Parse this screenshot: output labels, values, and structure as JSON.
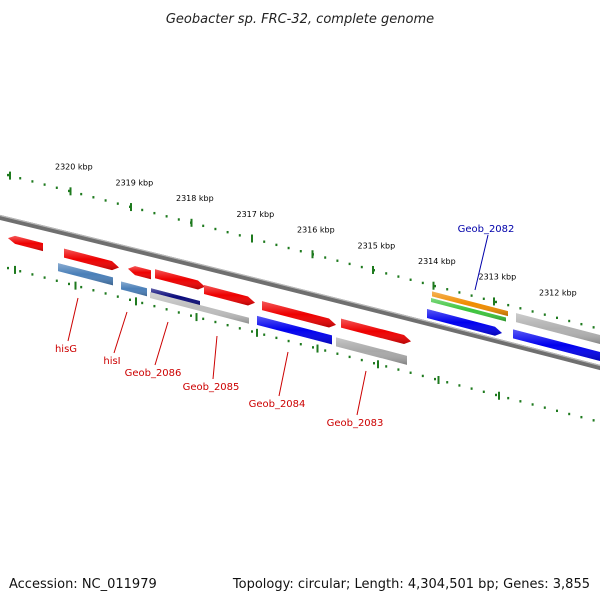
{
  "title": "Geobacter sp. FRC-32, complete genome",
  "footer": {
    "accession": "Accession: NC_011979",
    "summary": "Topology: circular; Length: 4,304,501 bp; Genes: 3,855"
  },
  "colors": {
    "backbone": "#7a7a7a",
    "tick": "#1e7a1e",
    "label_default": "#cc0000",
    "label_highlight": "#0000aa"
  },
  "scale_ticks": [
    {
      "label": "2320 kbp"
    },
    {
      "label": "2319 kbp"
    },
    {
      "label": "2318 kbp"
    },
    {
      "label": "2317 kbp"
    },
    {
      "label": "2316 kbp"
    },
    {
      "label": "2315 kbp"
    },
    {
      "label": "2314 kbp"
    },
    {
      "label": "2313 kbp"
    },
    {
      "label": "2312 kbp"
    }
  ],
  "genes": [
    {
      "name": "hisG",
      "color": "#4a7fb8",
      "strand": "minus"
    },
    {
      "name": "hisI",
      "color": "#4a7fb8",
      "strand": "minus"
    },
    {
      "name": "Geob_2086",
      "color": "#0a0a7a",
      "strand": "minus"
    },
    {
      "name": "Geob_2085",
      "color": "#bdbdbd",
      "strand": "minus"
    },
    {
      "name": "Geob_2084",
      "color": "#0000ee",
      "strand": "minus"
    },
    {
      "name": "Geob_2083",
      "color": "#a8a8a8",
      "strand": "minus"
    },
    {
      "name": "Geob_2082",
      "color": "#f08c00",
      "strand": "plus"
    }
  ],
  "other_features": [
    {
      "color": "#ee0000",
      "kind": "cds"
    },
    {
      "color": "#3cc43c",
      "kind": "gene"
    },
    {
      "color": "#0000ee",
      "kind": "cds"
    },
    {
      "color": "#b0b0b0",
      "kind": "gene"
    }
  ]
}
